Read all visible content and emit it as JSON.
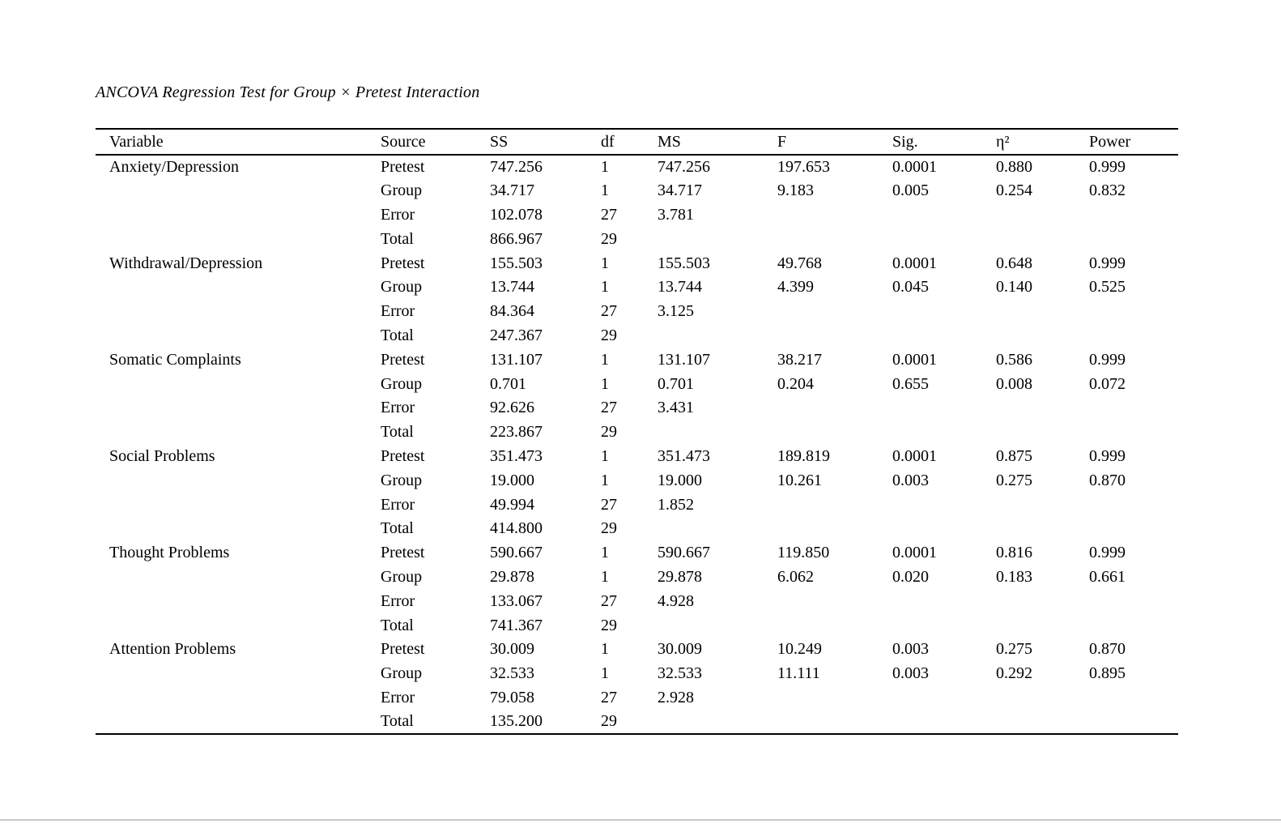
{
  "page": {
    "title": "ANCOVA Regression Test for Group × Pretest Interaction",
    "background_color": "#ffffff",
    "text_color": "#000000",
    "bottom_divider_color": "#c9c9c9"
  },
  "table": {
    "columns": [
      "Variable",
      "Source",
      "SS",
      "df",
      "MS",
      "F",
      "Sig.",
      "η²",
      "Power"
    ],
    "column_ids": [
      "variable",
      "source",
      "ss",
      "df",
      "ms",
      "f",
      "sig",
      "eta-squared",
      "power"
    ],
    "rows": [
      [
        "Anxiety/Depression",
        "Pretest",
        "747.256",
        "1",
        "747.256",
        "197.653",
        "0.0001",
        "0.880",
        "0.999"
      ],
      [
        "",
        "Group",
        "34.717",
        "1",
        "34.717",
        "9.183",
        "0.005",
        "0.254",
        "0.832"
      ],
      [
        "",
        "Error",
        "102.078",
        "27",
        "3.781",
        "",
        "",
        "",
        ""
      ],
      [
        "",
        "Total",
        "866.967",
        "29",
        "",
        "",
        "",
        "",
        ""
      ],
      [
        "Withdrawal/Depression",
        "Pretest",
        "155.503",
        "1",
        "155.503",
        "49.768",
        "0.0001",
        "0.648",
        "0.999"
      ],
      [
        "",
        "Group",
        "13.744",
        "1",
        "13.744",
        "4.399",
        "0.045",
        "0.140",
        "0.525"
      ],
      [
        "",
        "Error",
        "84.364",
        "27",
        "3.125",
        "",
        "",
        "",
        ""
      ],
      [
        "",
        "Total",
        "247.367",
        "29",
        "",
        "",
        "",
        "",
        ""
      ],
      [
        "Somatic Complaints",
        "Pretest",
        "131.107",
        "1",
        "131.107",
        "38.217",
        "0.0001",
        "0.586",
        "0.999"
      ],
      [
        "",
        "Group",
        "0.701",
        "1",
        "0.701",
        "0.204",
        "0.655",
        "0.008",
        "0.072"
      ],
      [
        "",
        "Error",
        "92.626",
        "27",
        "3.431",
        "",
        "",
        "",
        ""
      ],
      [
        "",
        "Total",
        "223.867",
        "29",
        "",
        "",
        "",
        "",
        ""
      ],
      [
        "Social Problems",
        "Pretest",
        "351.473",
        "1",
        "351.473",
        "189.819",
        "0.0001",
        "0.875",
        "0.999"
      ],
      [
        "",
        "Group",
        "19.000",
        "1",
        "19.000",
        "10.261",
        "0.003",
        "0.275",
        "0.870"
      ],
      [
        "",
        "Error",
        "49.994",
        "27",
        "1.852",
        "",
        "",
        "",
        ""
      ],
      [
        "",
        "Total",
        "414.800",
        "29",
        "",
        "",
        "",
        "",
        ""
      ],
      [
        "Thought Problems",
        "Pretest",
        "590.667",
        "1",
        "590.667",
        "119.850",
        "0.0001",
        "0.816",
        "0.999"
      ],
      [
        "",
        "Group",
        "29.878",
        "1",
        "29.878",
        "6.062",
        "0.020",
        "0.183",
        "0.661"
      ],
      [
        "",
        "Error",
        "133.067",
        "27",
        "4.928",
        "",
        "",
        "",
        ""
      ],
      [
        "",
        "Total",
        "741.367",
        "29",
        "",
        "",
        "",
        "",
        ""
      ],
      [
        "Attention Problems",
        "Pretest",
        "30.009",
        "1",
        "30.009",
        "10.249",
        "0.003",
        "0.275",
        "0.870"
      ],
      [
        "",
        "Group",
        "32.533",
        "1",
        "32.533",
        "11.111",
        "0.003",
        "0.292",
        "0.895"
      ],
      [
        "",
        "Error",
        "79.058",
        "27",
        "2.928",
        "",
        "",
        "",
        ""
      ],
      [
        "",
        "Total",
        "135.200",
        "29",
        "",
        "",
        "",
        "",
        ""
      ]
    ]
  }
}
